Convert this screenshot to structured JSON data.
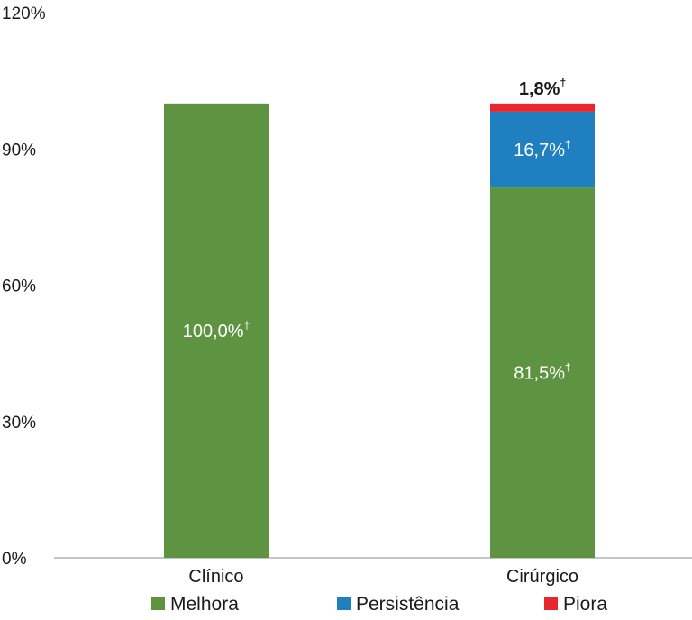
{
  "chart_data": {
    "type": "bar",
    "stacked": true,
    "categories": [
      "Clínico",
      "Cirúrgico"
    ],
    "series": [
      {
        "name": "Melhora",
        "values": [
          100.0,
          81.5
        ],
        "labels": [
          "100,0%",
          "81,5%"
        ],
        "color": "#5e9441"
      },
      {
        "name": "Persistência",
        "values": [
          0.0,
          16.7
        ],
        "labels": [
          "",
          "16,7%"
        ],
        "color": "#1f7fbf"
      },
      {
        "name": "Piora",
        "values": [
          0.0,
          1.8
        ],
        "labels": [
          "",
          "1,8%"
        ],
        "color": "#e8262e"
      }
    ],
    "label_marker": "†",
    "y_ticks": [
      "0%",
      "30%",
      "60%",
      "90%",
      "120%"
    ],
    "y_tick_values": [
      0,
      30,
      60,
      90,
      120
    ],
    "ylim": [
      0,
      120
    ],
    "xlabel": "",
    "ylabel": "",
    "title": "",
    "grid": false,
    "legend_position": "bottom"
  }
}
